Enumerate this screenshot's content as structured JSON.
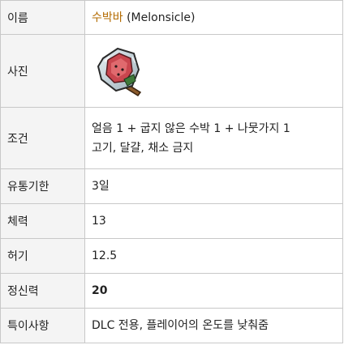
{
  "rows": {
    "name": {
      "label": "이름",
      "value_link": "수박바",
      "value_suffix": " (Melonsicle)"
    },
    "photo": {
      "label": "사진",
      "image_icon": "melonsicle-icon"
    },
    "recipe": {
      "label": "조건",
      "line1": "얼음 1 + 굽지 않은 수박 1 + 나뭇가지 1",
      "line2": "고기, 달걀, 채소 금지"
    },
    "expiry": {
      "label": "유통기한",
      "value": "3일"
    },
    "health": {
      "label": "체력",
      "value": "13"
    },
    "hunger": {
      "label": "허기",
      "value": "12.5"
    },
    "sanity": {
      "label": "정신력",
      "value": "20"
    },
    "special": {
      "label": "특이사항",
      "value": "DLC 전용, 플레이어의 온도를 낮춰줌"
    }
  },
  "colors": {
    "link": "#b36b00",
    "label_bg": "#f4f4f4",
    "border": "#c8c8c8"
  }
}
